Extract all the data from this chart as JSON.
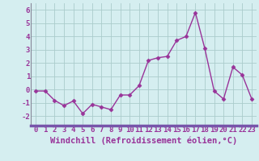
{
  "x": [
    0,
    1,
    2,
    3,
    4,
    5,
    6,
    7,
    8,
    9,
    10,
    11,
    12,
    13,
    14,
    15,
    16,
    17,
    18,
    19,
    20,
    21,
    22,
    23
  ],
  "y": [
    -0.1,
    -0.1,
    -0.8,
    -1.2,
    -0.85,
    -1.8,
    -1.1,
    -1.3,
    -1.5,
    -0.4,
    -0.4,
    0.3,
    2.2,
    2.4,
    2.5,
    3.7,
    4.0,
    5.8,
    3.1,
    -0.1,
    -0.7,
    1.7,
    1.1,
    -0.7
  ],
  "line_color": "#993399",
  "marker": "D",
  "markersize": 2.5,
  "bg_color": "#d5eef0",
  "plot_bg_color": "#d5eef0",
  "grid_color": "#aacccc",
  "border_color": "#888899",
  "xlabel": "Windchill (Refroidissement éolien,°C)",
  "xlabel_color": "#993399",
  "xlabel_fontsize": 7.5,
  "ylabel_ticks": [
    -2,
    -1,
    0,
    1,
    2,
    3,
    4,
    5,
    6
  ],
  "ylim": [
    -2.7,
    6.5
  ],
  "xlim": [
    -0.5,
    23.5
  ],
  "tick_fontsize": 6.5,
  "tick_color": "#993399",
  "linewidth": 1.0,
  "bottom_bar_color": "#7755aa"
}
